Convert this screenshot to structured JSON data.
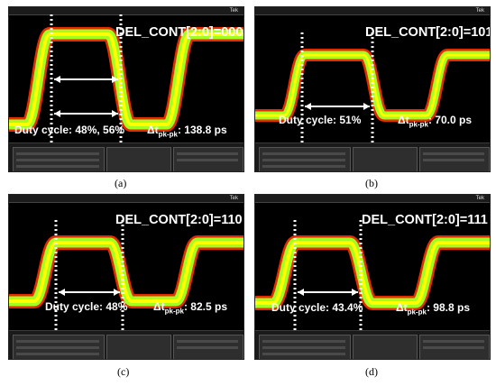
{
  "figure": {
    "panels": [
      {
        "id": "a",
        "setting": "DEL_CONT[2:0]=000",
        "duty": "Duty cycle: 48%, 56%",
        "dt_prefix": "Δt",
        "dt_sub": "pk-pk",
        "dt_value": ": 138.8 ps",
        "caption": "(a)"
      },
      {
        "id": "b",
        "setting": "DEL_CONT[2:0]=101",
        "duty": "Duty cycle: 51%",
        "dt_prefix": "Δt",
        "dt_sub": "pk-pk",
        "dt_value": ": 70.0 ps",
        "caption": "(b)"
      },
      {
        "id": "c",
        "setting": "DEL_CONT[2:0]=110",
        "duty": "Duty cycle: 48%",
        "dt_prefix": "Δt",
        "dt_sub": "pk-pk",
        "dt_value": ": 82.5 ps",
        "caption": "(c)"
      },
      {
        "id": "d",
        "setting": "DEL_CONT[2:0]=111",
        "duty": "Duty cycle: 43.4%",
        "dt_prefix": "Δt",
        "dt_sub": "pk-pk",
        "dt_value": ": 98.8 ps",
        "caption": "(d)"
      }
    ],
    "scope_brand": "Tek",
    "colors": {
      "trace_core": "#ffff00",
      "trace_mid": "#a0ff20",
      "trace_edge": "#ff3000",
      "marker": "#ffffff",
      "background": "#000000"
    }
  }
}
